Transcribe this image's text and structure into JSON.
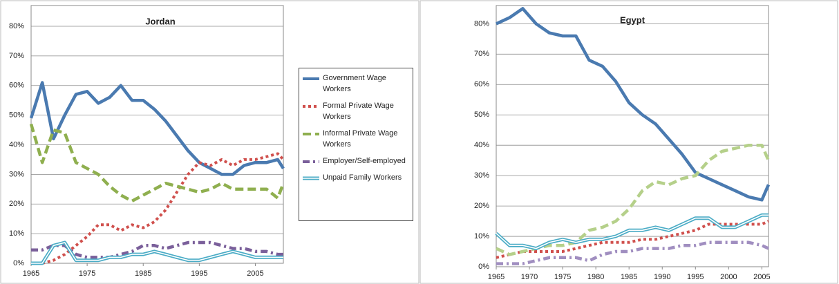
{
  "chart_data": [
    {
      "type": "line",
      "title": "Jordan",
      "x": [
        1965,
        1967,
        1969,
        1971,
        1973,
        1975,
        1977,
        1979,
        1981,
        1983,
        1985,
        1987,
        1989,
        1991,
        1993,
        1995,
        1997,
        1999,
        2001,
        2003,
        2005,
        2007,
        2009,
        2010
      ],
      "xlim": [
        1965,
        2010
      ],
      "xticks": [
        1965,
        1975,
        1985,
        1995,
        2005
      ],
      "ylim": [
        0,
        87
      ],
      "yticks": [
        {
          "value": 0,
          "label": "0%"
        },
        {
          "value": 10,
          "label": "10%"
        },
        {
          "value": 20,
          "label": "20%"
        },
        {
          "value": 30,
          "label": "30%"
        },
        {
          "value": 40,
          "label": "40%"
        },
        {
          "value": 50,
          "label": "50%"
        },
        {
          "value": 60,
          "label": "60%"
        },
        {
          "value": 70,
          "label": "70%"
        },
        {
          "value": 80,
          "label": "80%"
        }
      ],
      "grid": true,
      "legend": "right",
      "series": [
        {
          "name": "Government Wage Workers",
          "color": "#4a7ab0",
          "style": "solid",
          "values": [
            49,
            61,
            42,
            50,
            57,
            58,
            54,
            56,
            60,
            55,
            55,
            52,
            48,
            43,
            38,
            34,
            32,
            30,
            30,
            33,
            34,
            34,
            35,
            32
          ]
        },
        {
          "name": "Formal Private Wage Workers",
          "color": "#d0504d",
          "style": "dotted",
          "values": [
            0,
            0,
            1,
            3,
            6,
            9,
            13,
            13,
            11,
            13,
            12,
            14,
            18,
            24,
            30,
            34,
            33,
            35,
            33,
            35,
            35,
            36,
            37,
            35
          ]
        },
        {
          "name": "Informal Private Wage Workers",
          "color": "#8faf4f",
          "style": "dashed",
          "values": [
            47,
            34,
            45,
            44,
            34,
            32,
            30,
            26,
            23,
            21,
            23,
            25,
            27,
            26,
            25,
            24,
            25,
            27,
            25,
            25,
            25,
            25,
            22,
            27
          ]
        },
        {
          "name": "Employer/Self-employed",
          "color": "#7a5f9a",
          "style": "dashdot",
          "values": [
            4.5,
            4.5,
            6,
            6,
            3,
            2,
            2,
            2,
            3,
            4,
            6,
            6,
            5,
            6,
            7,
            7,
            7,
            6,
            5,
            5,
            4,
            4,
            3,
            3
          ]
        },
        {
          "name": "Unpaid Family Workers",
          "color": "#4bacc6",
          "style": "double",
          "values": [
            0,
            0,
            6,
            7,
            1,
            1,
            1,
            2,
            2,
            3,
            3,
            4,
            3,
            2,
            1,
            1,
            2,
            3,
            4,
            3,
            2,
            2,
            2,
            2
          ]
        }
      ]
    },
    {
      "type": "line",
      "title": "Egypt",
      "x": [
        1965,
        1967,
        1969,
        1971,
        1973,
        1975,
        1977,
        1979,
        1981,
        1983,
        1985,
        1987,
        1989,
        1991,
        1993,
        1995,
        1997,
        1999,
        2001,
        2003,
        2005,
        2006
      ],
      "xlim": [
        1965,
        2006
      ],
      "xticks": [
        1965,
        1970,
        1975,
        1980,
        1985,
        1990,
        1995,
        2000,
        2005
      ],
      "ylim": [
        0,
        86
      ],
      "yticks": [
        {
          "value": 0,
          "label": "0%"
        },
        {
          "value": 10,
          "label": "10%"
        },
        {
          "value": 20,
          "label": "20%"
        },
        {
          "value": 30,
          "label": "30%"
        },
        {
          "value": 40,
          "label": "40%"
        },
        {
          "value": 50,
          "label": "50%"
        },
        {
          "value": 60,
          "label": "60%"
        },
        {
          "value": 70,
          "label": "70%"
        },
        {
          "value": 80,
          "label": "80%"
        }
      ],
      "grid": true,
      "series": [
        {
          "color": "#4a7ab0",
          "style": "solid",
          "values": [
            80,
            82,
            85,
            80,
            77,
            76,
            76,
            68,
            66,
            61,
            54,
            50,
            47,
            42,
            37,
            31,
            29,
            27,
            25,
            23,
            22,
            27
          ]
        },
        {
          "color": "#d0504d",
          "style": "dotted",
          "values": [
            3,
            4,
            5,
            5,
            5,
            5,
            6,
            7,
            8,
            8,
            8,
            9,
            9,
            10,
            11,
            12,
            14,
            14,
            14,
            14,
            14,
            15
          ]
        },
        {
          "color": "#b5d08a",
          "style": "dashed",
          "values": [
            6,
            4,
            5,
            6,
            7,
            7,
            8,
            12,
            13,
            15,
            19,
            25,
            28,
            27,
            29,
            30,
            35,
            38,
            39,
            40,
            40,
            35
          ]
        },
        {
          "color": "#a08ec0",
          "style": "dashdot",
          "values": [
            1,
            1,
            1,
            2,
            3,
            3,
            3,
            2,
            4,
            5,
            5,
            6,
            6,
            6,
            7,
            7,
            8,
            8,
            8,
            8,
            7,
            6
          ]
        },
        {
          "color": "#4bacc6",
          "style": "double",
          "values": [
            11,
            7,
            7,
            6,
            8,
            9,
            8,
            9,
            9,
            10,
            12,
            12,
            13,
            12,
            14,
            16,
            16,
            13,
            13,
            15,
            17,
            17
          ]
        }
      ]
    }
  ]
}
